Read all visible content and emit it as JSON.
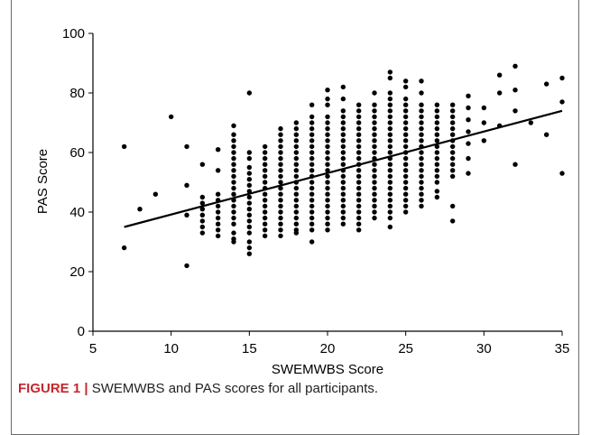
{
  "caption": {
    "label": "FIGURE 1 |",
    "text": " SWEMWBS and PAS scores for all participants."
  },
  "chart_data": {
    "type": "scatter",
    "title": "",
    "xlabel": "SWEMWBS Score",
    "ylabel": "PAS Score",
    "xlim": [
      5,
      35
    ],
    "ylim": [
      0,
      100
    ],
    "xticks": [
      5,
      10,
      15,
      20,
      25,
      30,
      35
    ],
    "yticks": [
      0,
      20,
      40,
      60,
      80,
      100
    ],
    "grid": false,
    "legend": "none",
    "point_color": "#000000",
    "trendline": {
      "x": [
        7,
        35
      ],
      "y": [
        35,
        74
      ]
    },
    "points": [
      [
        7,
        62
      ],
      [
        7,
        28
      ],
      [
        8,
        41
      ],
      [
        9,
        46
      ],
      [
        10,
        72
      ],
      [
        11,
        62
      ],
      [
        11,
        49
      ],
      [
        11,
        39
      ],
      [
        11,
        22
      ],
      [
        12,
        56
      ],
      [
        12,
        45
      ],
      [
        12,
        43
      ],
      [
        12,
        41
      ],
      [
        12,
        39
      ],
      [
        12,
        37
      ],
      [
        12,
        35
      ],
      [
        12,
        33
      ],
      [
        13,
        61
      ],
      [
        13,
        54
      ],
      [
        13,
        46
      ],
      [
        13,
        44
      ],
      [
        13,
        42
      ],
      [
        13,
        40
      ],
      [
        13,
        38
      ],
      [
        13,
        36
      ],
      [
        13,
        34
      ],
      [
        13,
        32
      ],
      [
        14,
        69
      ],
      [
        14,
        66
      ],
      [
        14,
        64
      ],
      [
        14,
        62
      ],
      [
        14,
        60
      ],
      [
        14,
        58
      ],
      [
        14,
        56
      ],
      [
        14,
        54
      ],
      [
        14,
        52
      ],
      [
        14,
        50
      ],
      [
        14,
        48
      ],
      [
        14,
        46
      ],
      [
        14,
        44
      ],
      [
        14,
        42
      ],
      [
        14,
        40
      ],
      [
        14,
        38
      ],
      [
        14,
        36
      ],
      [
        14,
        33
      ],
      [
        14,
        31
      ],
      [
        14,
        30
      ],
      [
        15,
        80
      ],
      [
        15,
        60
      ],
      [
        15,
        58
      ],
      [
        15,
        55
      ],
      [
        15,
        53
      ],
      [
        15,
        51
      ],
      [
        15,
        49
      ],
      [
        15,
        47
      ],
      [
        15,
        45
      ],
      [
        15,
        43
      ],
      [
        15,
        41
      ],
      [
        15,
        39
      ],
      [
        15,
        37
      ],
      [
        15,
        35
      ],
      [
        15,
        33
      ],
      [
        15,
        30
      ],
      [
        15,
        28
      ],
      [
        15,
        26
      ],
      [
        16,
        62
      ],
      [
        16,
        60
      ],
      [
        16,
        58
      ],
      [
        16,
        56
      ],
      [
        16,
        54
      ],
      [
        16,
        52
      ],
      [
        16,
        50
      ],
      [
        16,
        48
      ],
      [
        16,
        46
      ],
      [
        16,
        44
      ],
      [
        16,
        42
      ],
      [
        16,
        40
      ],
      [
        16,
        38
      ],
      [
        16,
        36
      ],
      [
        16,
        34
      ],
      [
        16,
        32
      ],
      [
        17,
        68
      ],
      [
        17,
        66
      ],
      [
        17,
        64
      ],
      [
        17,
        62
      ],
      [
        17,
        60
      ],
      [
        17,
        58
      ],
      [
        17,
        56
      ],
      [
        17,
        54
      ],
      [
        17,
        52
      ],
      [
        17,
        50
      ],
      [
        17,
        48
      ],
      [
        17,
        46
      ],
      [
        17,
        44
      ],
      [
        17,
        42
      ],
      [
        17,
        40
      ],
      [
        17,
        38
      ],
      [
        17,
        36
      ],
      [
        17,
        34
      ],
      [
        17,
        32
      ],
      [
        18,
        70
      ],
      [
        18,
        68
      ],
      [
        18,
        66
      ],
      [
        18,
        64
      ],
      [
        18,
        62
      ],
      [
        18,
        60
      ],
      [
        18,
        58
      ],
      [
        18,
        56
      ],
      [
        18,
        54
      ],
      [
        18,
        52
      ],
      [
        18,
        50
      ],
      [
        18,
        48
      ],
      [
        18,
        46
      ],
      [
        18,
        44
      ],
      [
        18,
        42
      ],
      [
        18,
        40
      ],
      [
        18,
        38
      ],
      [
        18,
        36
      ],
      [
        18,
        34
      ],
      [
        18,
        33
      ],
      [
        19,
        76
      ],
      [
        19,
        72
      ],
      [
        19,
        70
      ],
      [
        19,
        68
      ],
      [
        19,
        66
      ],
      [
        19,
        64
      ],
      [
        19,
        62
      ],
      [
        19,
        60
      ],
      [
        19,
        58
      ],
      [
        19,
        56
      ],
      [
        19,
        54
      ],
      [
        19,
        52
      ],
      [
        19,
        50
      ],
      [
        19,
        48
      ],
      [
        19,
        46
      ],
      [
        19,
        44
      ],
      [
        19,
        42
      ],
      [
        19,
        40
      ],
      [
        19,
        38
      ],
      [
        19,
        36
      ],
      [
        19,
        34
      ],
      [
        19,
        30
      ],
      [
        20,
        81
      ],
      [
        20,
        78
      ],
      [
        20,
        76
      ],
      [
        20,
        72
      ],
      [
        20,
        70
      ],
      [
        20,
        68
      ],
      [
        20,
        66
      ],
      [
        20,
        64
      ],
      [
        20,
        62
      ],
      [
        20,
        60
      ],
      [
        20,
        58
      ],
      [
        20,
        56
      ],
      [
        20,
        54
      ],
      [
        20,
        52
      ],
      [
        20,
        50
      ],
      [
        20,
        48
      ],
      [
        20,
        46
      ],
      [
        20,
        44
      ],
      [
        20,
        42
      ],
      [
        20,
        40
      ],
      [
        20,
        38
      ],
      [
        20,
        36
      ],
      [
        20,
        34
      ],
      [
        21,
        82
      ],
      [
        21,
        78
      ],
      [
        21,
        74
      ],
      [
        21,
        72
      ],
      [
        21,
        70
      ],
      [
        21,
        68
      ],
      [
        21,
        66
      ],
      [
        21,
        64
      ],
      [
        21,
        62
      ],
      [
        21,
        60
      ],
      [
        21,
        58
      ],
      [
        21,
        56
      ],
      [
        21,
        54
      ],
      [
        21,
        52
      ],
      [
        21,
        50
      ],
      [
        21,
        48
      ],
      [
        21,
        46
      ],
      [
        21,
        44
      ],
      [
        21,
        42
      ],
      [
        21,
        40
      ],
      [
        21,
        38
      ],
      [
        21,
        36
      ],
      [
        22,
        76
      ],
      [
        22,
        74
      ],
      [
        22,
        72
      ],
      [
        22,
        70
      ],
      [
        22,
        68
      ],
      [
        22,
        66
      ],
      [
        22,
        64
      ],
      [
        22,
        62
      ],
      [
        22,
        60
      ],
      [
        22,
        58
      ],
      [
        22,
        56
      ],
      [
        22,
        54
      ],
      [
        22,
        52
      ],
      [
        22,
        50
      ],
      [
        22,
        48
      ],
      [
        22,
        46
      ],
      [
        22,
        44
      ],
      [
        22,
        42
      ],
      [
        22,
        40
      ],
      [
        22,
        38
      ],
      [
        22,
        36
      ],
      [
        22,
        34
      ],
      [
        23,
        80
      ],
      [
        23,
        76
      ],
      [
        23,
        74
      ],
      [
        23,
        72
      ],
      [
        23,
        70
      ],
      [
        23,
        68
      ],
      [
        23,
        66
      ],
      [
        23,
        64
      ],
      [
        23,
        62
      ],
      [
        23,
        60
      ],
      [
        23,
        58
      ],
      [
        23,
        56
      ],
      [
        23,
        54
      ],
      [
        23,
        52
      ],
      [
        23,
        50
      ],
      [
        23,
        48
      ],
      [
        23,
        46
      ],
      [
        23,
        44
      ],
      [
        23,
        42
      ],
      [
        23,
        40
      ],
      [
        23,
        38
      ],
      [
        24,
        87
      ],
      [
        24,
        85
      ],
      [
        24,
        80
      ],
      [
        24,
        78
      ],
      [
        24,
        76
      ],
      [
        24,
        74
      ],
      [
        24,
        72
      ],
      [
        24,
        70
      ],
      [
        24,
        68
      ],
      [
        24,
        66
      ],
      [
        24,
        64
      ],
      [
        24,
        62
      ],
      [
        24,
        60
      ],
      [
        24,
        58
      ],
      [
        24,
        56
      ],
      [
        24,
        54
      ],
      [
        24,
        52
      ],
      [
        24,
        50
      ],
      [
        24,
        48
      ],
      [
        24,
        46
      ],
      [
        24,
        44
      ],
      [
        24,
        42
      ],
      [
        24,
        40
      ],
      [
        24,
        38
      ],
      [
        24,
        35
      ],
      [
        25,
        84
      ],
      [
        25,
        82
      ],
      [
        25,
        78
      ],
      [
        25,
        76
      ],
      [
        25,
        74
      ],
      [
        25,
        72
      ],
      [
        25,
        70
      ],
      [
        25,
        68
      ],
      [
        25,
        66
      ],
      [
        25,
        64
      ],
      [
        25,
        62
      ],
      [
        25,
        60
      ],
      [
        25,
        58
      ],
      [
        25,
        56
      ],
      [
        25,
        54
      ],
      [
        25,
        52
      ],
      [
        25,
        50
      ],
      [
        25,
        48
      ],
      [
        25,
        46
      ],
      [
        25,
        44
      ],
      [
        25,
        42
      ],
      [
        25,
        40
      ],
      [
        26,
        84
      ],
      [
        26,
        80
      ],
      [
        26,
        76
      ],
      [
        26,
        74
      ],
      [
        26,
        72
      ],
      [
        26,
        70
      ],
      [
        26,
        68
      ],
      [
        26,
        66
      ],
      [
        26,
        64
      ],
      [
        26,
        62
      ],
      [
        26,
        60
      ],
      [
        26,
        58
      ],
      [
        26,
        56
      ],
      [
        26,
        54
      ],
      [
        26,
        52
      ],
      [
        26,
        50
      ],
      [
        26,
        48
      ],
      [
        26,
        46
      ],
      [
        26,
        44
      ],
      [
        26,
        42
      ],
      [
        27,
        76
      ],
      [
        27,
        74
      ],
      [
        27,
        72
      ],
      [
        27,
        70
      ],
      [
        27,
        68
      ],
      [
        27,
        66
      ],
      [
        27,
        64
      ],
      [
        27,
        62
      ],
      [
        27,
        60
      ],
      [
        27,
        58
      ],
      [
        27,
        56
      ],
      [
        27,
        54
      ],
      [
        27,
        52
      ],
      [
        27,
        50
      ],
      [
        27,
        47
      ],
      [
        27,
        45
      ],
      [
        28,
        76
      ],
      [
        28,
        74
      ],
      [
        28,
        72
      ],
      [
        28,
        70
      ],
      [
        28,
        68
      ],
      [
        28,
        66
      ],
      [
        28,
        64
      ],
      [
        28,
        62
      ],
      [
        28,
        60
      ],
      [
        28,
        58
      ],
      [
        28,
        56
      ],
      [
        28,
        54
      ],
      [
        28,
        52
      ],
      [
        28,
        42
      ],
      [
        28,
        37
      ],
      [
        29,
        79
      ],
      [
        29,
        75
      ],
      [
        29,
        71
      ],
      [
        29,
        67
      ],
      [
        29,
        63
      ],
      [
        29,
        58
      ],
      [
        29,
        53
      ],
      [
        30,
        75
      ],
      [
        30,
        70
      ],
      [
        30,
        64
      ],
      [
        31,
        86
      ],
      [
        31,
        80
      ],
      [
        31,
        69
      ],
      [
        32,
        89
      ],
      [
        32,
        81
      ],
      [
        32,
        74
      ],
      [
        32,
        56
      ],
      [
        33,
        70
      ],
      [
        34,
        83
      ],
      [
        34,
        66
      ],
      [
        35,
        85
      ],
      [
        35,
        77
      ],
      [
        35,
        53
      ]
    ]
  }
}
